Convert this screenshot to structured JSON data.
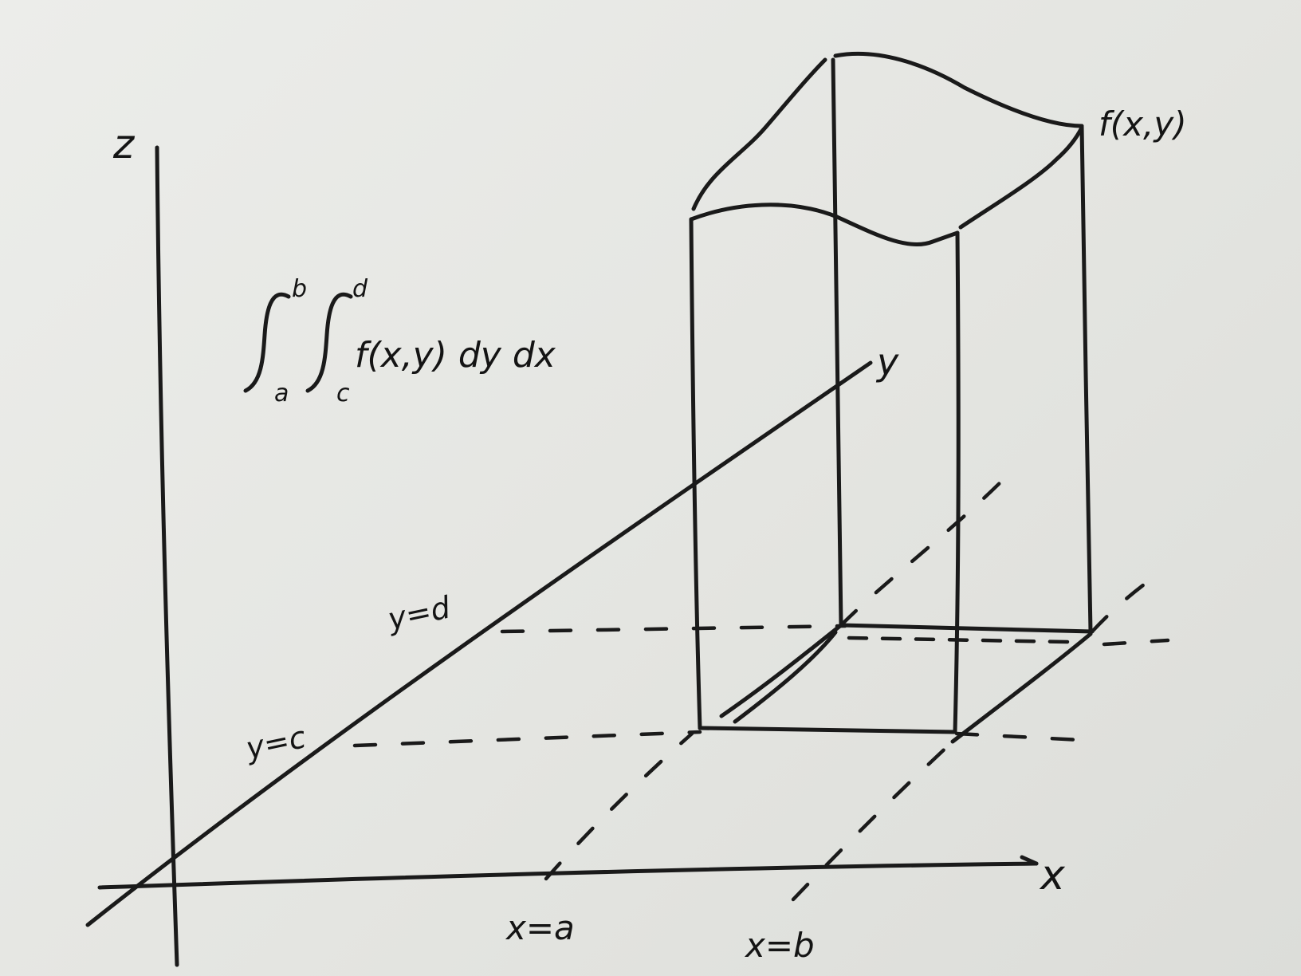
{
  "axes": {
    "z_label": "z",
    "x_label": "x",
    "y_label": "y"
  },
  "integral": {
    "upper_outer": "b",
    "lower_outer": "a",
    "upper_inner": "d",
    "lower_inner": "c",
    "integrand": "f(x,y) dy dx"
  },
  "surface_label": "f(x,y)",
  "bounds": {
    "y_d": "y=d",
    "y_c": "y=c",
    "x_a": "x=a",
    "x_b": "x=b"
  },
  "colors": {
    "paper": "#e6e7e3",
    "ink": "#1a1a1a"
  }
}
